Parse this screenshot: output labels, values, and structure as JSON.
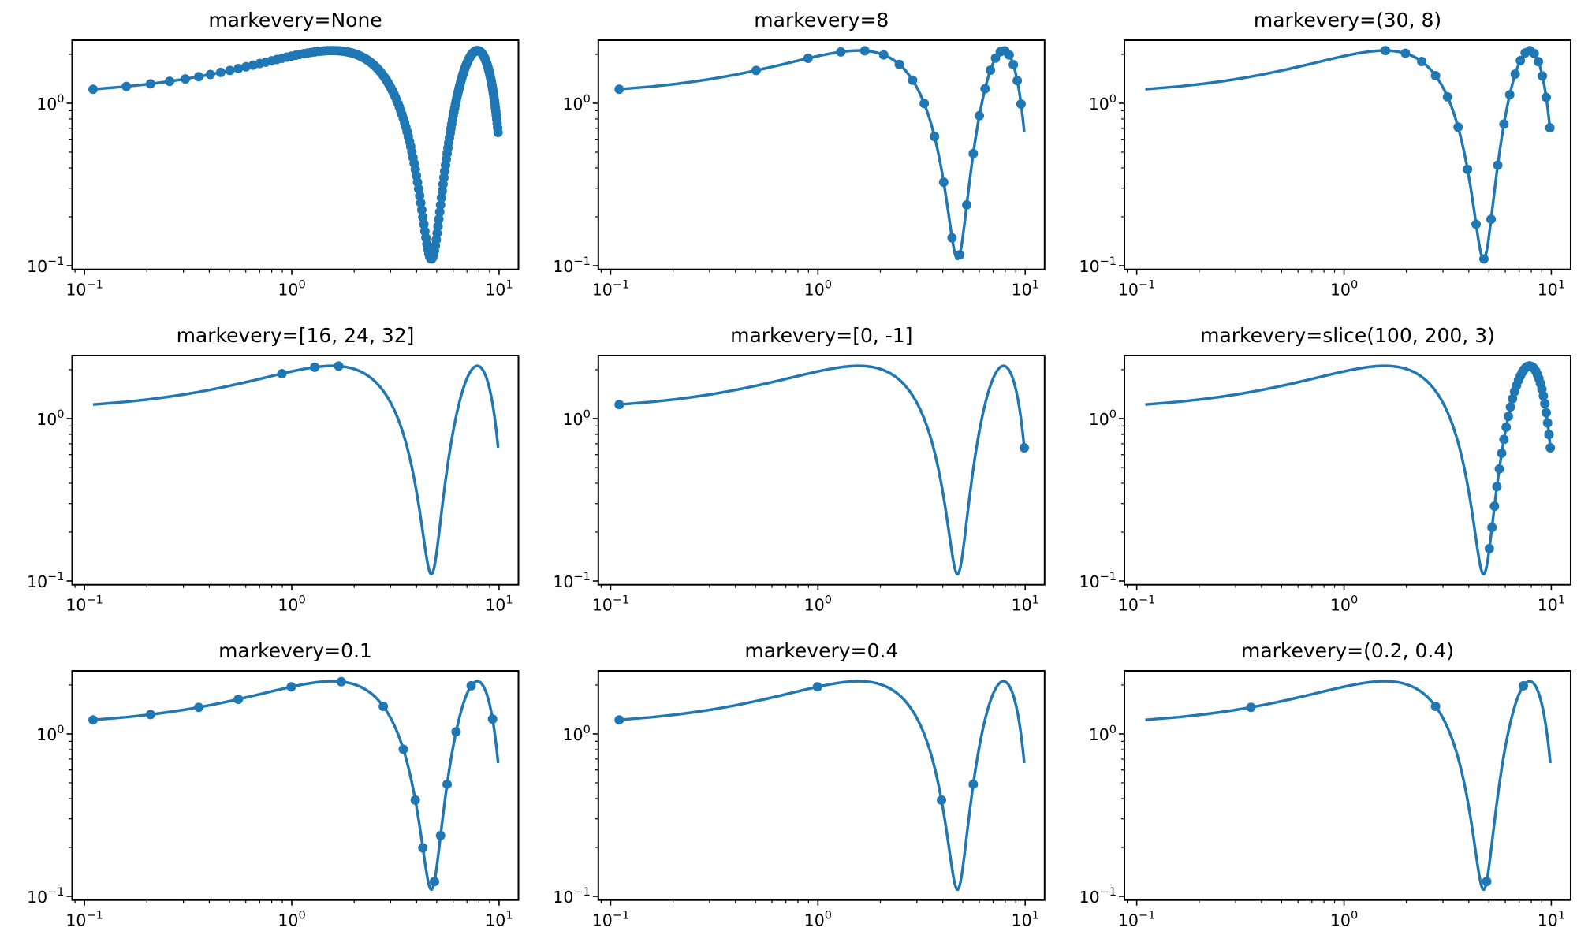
{
  "chart_data": [
    {
      "type": "line",
      "title": "markevery=None",
      "markevery": {
        "kind": "none"
      }
    },
    {
      "type": "line",
      "title": "markevery=8",
      "markevery": {
        "kind": "int",
        "step": 8
      }
    },
    {
      "type": "line",
      "title": "markevery=(30, 8)",
      "markevery": {
        "kind": "int",
        "start": 30,
        "step": 8
      }
    },
    {
      "type": "line",
      "title": "markevery=[16, 24, 32]",
      "markevery": {
        "kind": "list",
        "indices": [
          16,
          24,
          32
        ]
      }
    },
    {
      "type": "line",
      "title": "markevery=[0, -1]",
      "markevery": {
        "kind": "list",
        "indices": [
          0,
          -1
        ]
      }
    },
    {
      "type": "line",
      "title": "markevery=slice(100, 200, 3)",
      "markevery": {
        "kind": "slice",
        "start": 100,
        "stop": 200,
        "step": 3
      }
    },
    {
      "type": "line",
      "title": "markevery=0.1",
      "markevery": {
        "kind": "float",
        "start": 0,
        "step": 0.1
      }
    },
    {
      "type": "line",
      "title": "markevery=0.4",
      "markevery": {
        "kind": "float",
        "start": 0,
        "step": 0.4
      }
    },
    {
      "type": "line",
      "title": "markevery=(0.2, 0.4)",
      "markevery": {
        "kind": "float",
        "start": 0.2,
        "step": 0.4
      }
    }
  ],
  "shared_series": {
    "x": {
      "linspace_start": 0.11,
      "linspace_stop": 9.89,
      "num_points": 200
    },
    "y_expression": "sin(x) + 1.11",
    "xscale": "log",
    "yscale": "log",
    "xlim": [
      0.0872,
      12.4
    ],
    "ylim": [
      0.0949,
      2.444
    ],
    "x_ticks": [
      {
        "value": 0.1,
        "base": "10",
        "exp": "−1"
      },
      {
        "value": 1,
        "base": "10",
        "exp": "0"
      },
      {
        "value": 10,
        "base": "10",
        "exp": "1"
      }
    ],
    "y_ticks": [
      {
        "value": 0.1,
        "base": "10",
        "exp": "−1"
      },
      {
        "value": 1,
        "base": "10",
        "exp": "0"
      }
    ],
    "grid": false,
    "marker": "circle",
    "color": "#1f77b4"
  }
}
